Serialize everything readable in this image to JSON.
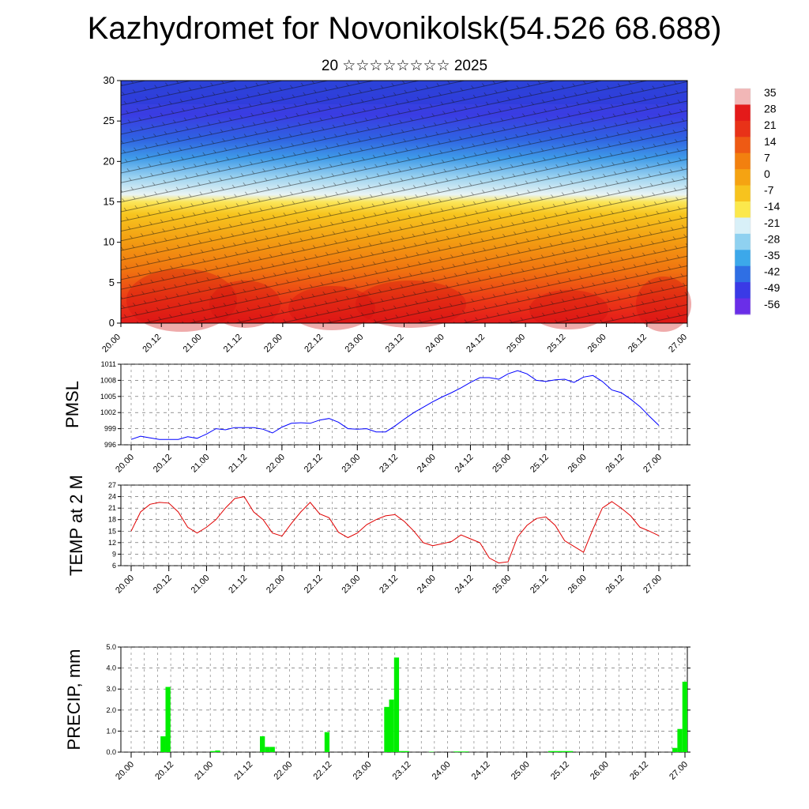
{
  "title": "Kazhydromet for Novonikolsk(54.526 68.688)",
  "subtitle": "20 ☆☆☆☆☆☆☆☆ 2025",
  "time_labels": [
    "20.00",
    "20.12",
    "21.00",
    "21.12",
    "22.00",
    "22.12",
    "23.00",
    "23.12",
    "24.00",
    "24.12",
    "25.00",
    "25.12",
    "26.00",
    "26.12",
    "27.00"
  ],
  "chart_data": [
    {
      "type": "heatmap",
      "description_id": "cross-section",
      "x_labels": [
        "20.00",
        "20.12",
        "21.00",
        "21.12",
        "22.00",
        "22.12",
        "23.00",
        "23.12",
        "24.00",
        "24.12",
        "25.00",
        "25.12",
        "26.00",
        "26.12",
        "27.00"
      ],
      "y_ticks": [
        0,
        5,
        10,
        15,
        20,
        25,
        30
      ],
      "ylim": [
        0,
        30
      ],
      "colorbar_labels": [
        "35",
        "28",
        "21",
        "14",
        "7",
        "0",
        "-7",
        "-14",
        "-21",
        "-28",
        "-35",
        "-42",
        "-49",
        "-56"
      ],
      "colorbar_colors": [
        "#f2b7b7",
        "#e41a1a",
        "#e83218",
        "#ee5a14",
        "#f2800f",
        "#f5a312",
        "#f7c31e",
        "#fbe84c",
        "#d8f0f8",
        "#8fd1f0",
        "#3ca8ea",
        "#2f6fe4",
        "#3a3ae6",
        "#6a2ee8"
      ]
    },
    {
      "type": "line",
      "ylabel": "PMSL",
      "ylim": [
        996,
        1011
      ],
      "y_ticks": [
        996,
        999,
        1002,
        1005,
        1008,
        1011
      ],
      "color": "#0000ff",
      "values": [
        997,
        997.6,
        997.3,
        997,
        997,
        997,
        997.5,
        997.2,
        998,
        999,
        998.8,
        999.2,
        999.2,
        999.2,
        998.9,
        998.2,
        999.3,
        1000,
        1000.1,
        1000,
        1000.6,
        1000.9,
        1000.2,
        999,
        998.9,
        999,
        998.4,
        998.4,
        999.5,
        1000.8,
        1002,
        1003,
        1004,
        1004.9,
        1005.7,
        1006.6,
        1007.6,
        1008.5,
        1008.5,
        1008.2,
        1009.2,
        1009.8,
        1009.2,
        1008,
        1007.8,
        1008.1,
        1008.2,
        1007.6,
        1008.6,
        1008.9,
        1007.8,
        1006.2,
        1005.7,
        1004.5,
        1003.1,
        1001.3,
        999.6
      ]
    },
    {
      "type": "line",
      "ylabel": "TEMP at 2 M",
      "ylim": [
        6,
        27
      ],
      "y_ticks": [
        6,
        9,
        12,
        15,
        18,
        21,
        24,
        27
      ],
      "color": "#e00000",
      "values": [
        15,
        20,
        22,
        22.5,
        22.3,
        20,
        16,
        14.5,
        16,
        18,
        21,
        23.5,
        24,
        20,
        18,
        14.5,
        13.7,
        17,
        20,
        22.5,
        19.5,
        18.5,
        14.7,
        13.3,
        14.5,
        16.7,
        18,
        19,
        19.3,
        17.5,
        15,
        12,
        11.2,
        11.7,
        12.3,
        14,
        13,
        12,
        8,
        6.7,
        7,
        13.5,
        16.5,
        18.3,
        18.7,
        16.5,
        12.5,
        11,
        9.5,
        15.5,
        21,
        22.7,
        21,
        19,
        16,
        15,
        13.8
      ]
    },
    {
      "type": "bar",
      "ylabel": "PRECIP, mm",
      "ylim": [
        0,
        5
      ],
      "y_ticks": [
        "0.0",
        "1.0",
        "2.0",
        "3.0",
        "4.0",
        "5.0"
      ],
      "color": "#00ee00",
      "values": [
        0,
        0,
        0,
        0,
        0.75,
        3.1,
        0,
        0,
        0,
        0,
        0,
        0,
        0,
        0,
        0.05,
        0.08,
        0,
        0,
        0,
        0,
        0,
        0,
        0,
        0,
        0.75,
        0.25,
        0.25,
        0,
        0,
        0,
        0,
        0,
        0,
        0,
        0,
        0,
        0,
        0.95,
        0,
        0,
        0,
        0,
        0,
        0,
        0,
        0,
        0,
        0,
        0,
        2.15,
        2.5,
        4.5,
        0.05,
        0.05,
        0,
        0,
        0,
        0,
        0.02,
        0,
        0,
        0,
        0,
        0.03,
        0.03,
        0.03,
        0,
        0,
        0,
        0,
        0,
        0,
        0,
        0,
        0,
        0,
        0,
        0,
        0,
        0,
        0,
        0,
        0.05,
        0.05,
        0.05,
        0.05,
        0.05,
        0,
        0,
        0,
        0,
        0,
        0,
        0,
        0,
        0,
        0,
        0,
        0,
        0,
        0,
        0,
        0,
        0,
        0,
        0,
        0,
        0.2,
        1.1,
        3.35
      ]
    }
  ]
}
